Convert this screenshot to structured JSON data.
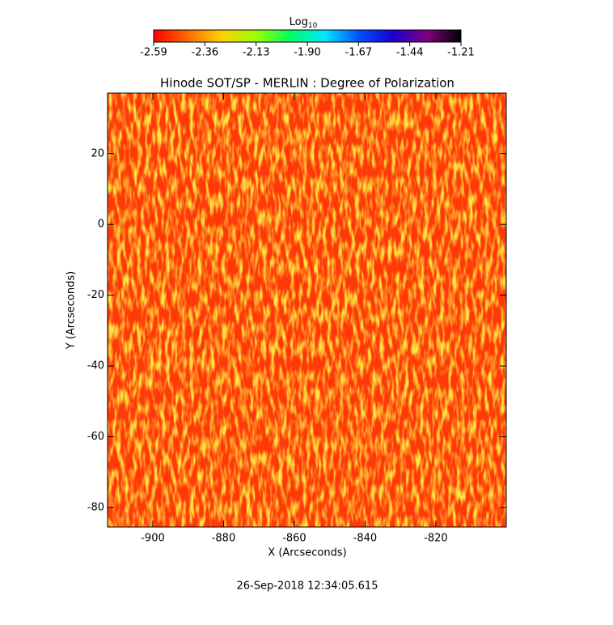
{
  "chart_data": {
    "type": "heatmap",
    "title": "Hinode SOT/SP - MERLIN : Degree of Polarization",
    "x_label": "X (Arcseconds)",
    "y_label": "Y (Arcseconds)",
    "footer": "26-Sep-2018 12:34:05.615",
    "xlim": [
      -912.8,
      -800.1
    ],
    "xticks": [
      -900,
      -880,
      -860,
      -840,
      -820
    ],
    "ylim": [
      -85.5,
      37.1
    ],
    "yticks": [
      -80,
      -60,
      -40,
      -20,
      0,
      20
    ],
    "colorbar": {
      "title": "Log",
      "title_sub": "10",
      "clim": [
        -2.59,
        -1.21
      ],
      "ticks": [
        -2.59,
        -2.36,
        -2.13,
        -1.9,
        -1.67,
        -1.44,
        -1.21
      ],
      "tick_labels": [
        "-2.59",
        "-2.36",
        "-2.13",
        "-1.90",
        "-1.67",
        "-1.44",
        "-1.21"
      ],
      "colors": [
        "#ff0000",
        "#ff6a00",
        "#ffd200",
        "#9aff00",
        "#00ff60",
        "#00e8ff",
        "#0050ff",
        "#1800d0",
        "#800080",
        "#000000"
      ]
    }
  }
}
